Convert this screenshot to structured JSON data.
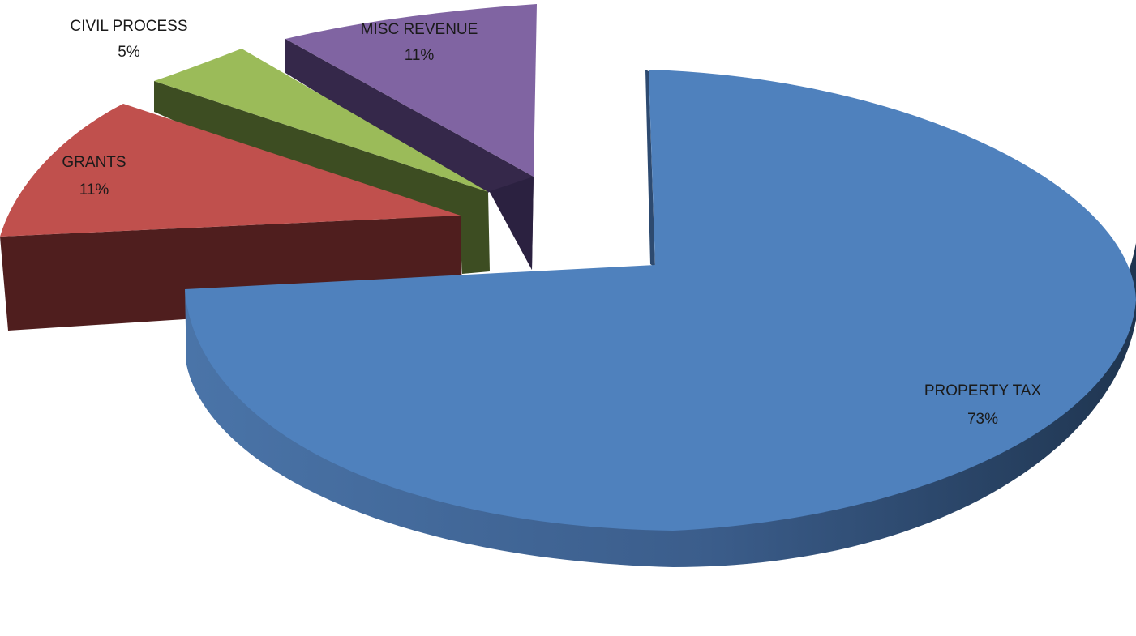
{
  "chart_data": {
    "type": "pie",
    "three_d": true,
    "exploded": true,
    "title": "",
    "slices": [
      {
        "label": "PROPERTY TAX",
        "pct_label": "73%",
        "value": 73,
        "color": "#4f81bd",
        "side_color": "#3a5f8c"
      },
      {
        "label": "GRANTS",
        "pct_label": "11%",
        "value": 11,
        "color": "#c0504d",
        "side_color": "#4f1e1e"
      },
      {
        "label": "CIVIL PROCESS",
        "pct_label": "5%",
        "value": 5,
        "color": "#9bbb59",
        "side_color": "#3d4d22"
      },
      {
        "label": "MISC REVENUE",
        "pct_label": "11%",
        "value": 11,
        "color": "#8064a2",
        "side_color": "#35284a"
      }
    ]
  }
}
